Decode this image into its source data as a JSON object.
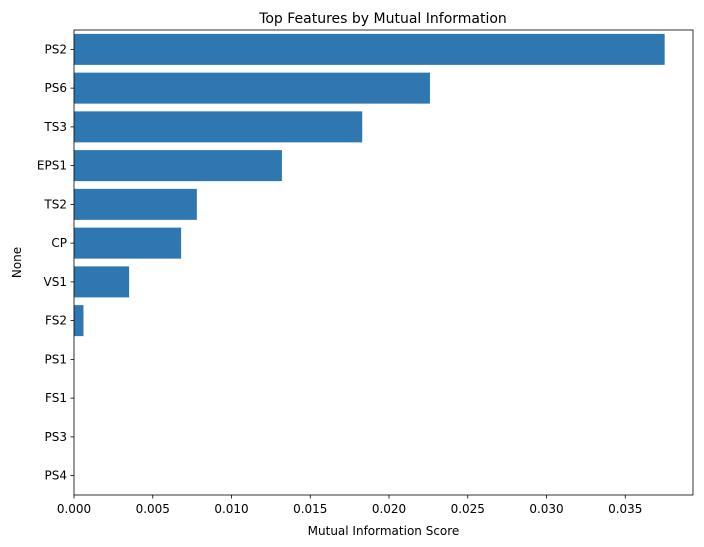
{
  "chart_data": {
    "type": "bar",
    "orientation": "horizontal",
    "title": "Top Features by Mutual Information",
    "xlabel": "Mutual Information Score",
    "ylabel": "None",
    "categories": [
      "PS2",
      "PS6",
      "TS3",
      "EPS1",
      "TS2",
      "CP",
      "VS1",
      "FS2",
      "PS1",
      "FS1",
      "PS3",
      "PS4"
    ],
    "values": [
      0.0375,
      0.0226,
      0.0183,
      0.0132,
      0.0078,
      0.0068,
      0.0035,
      0.0006,
      0,
      0,
      0,
      0
    ],
    "xlim": [
      0,
      0.0393
    ],
    "xticks": [
      0.0,
      0.005,
      0.01,
      0.015,
      0.02,
      0.025,
      0.03,
      0.035
    ],
    "xtick_labels": [
      "0.000",
      "0.005",
      "0.010",
      "0.015",
      "0.020",
      "0.025",
      "0.030",
      "0.035"
    ],
    "bar_color": "#2e77b0",
    "grid": false,
    "legend": "none"
  }
}
